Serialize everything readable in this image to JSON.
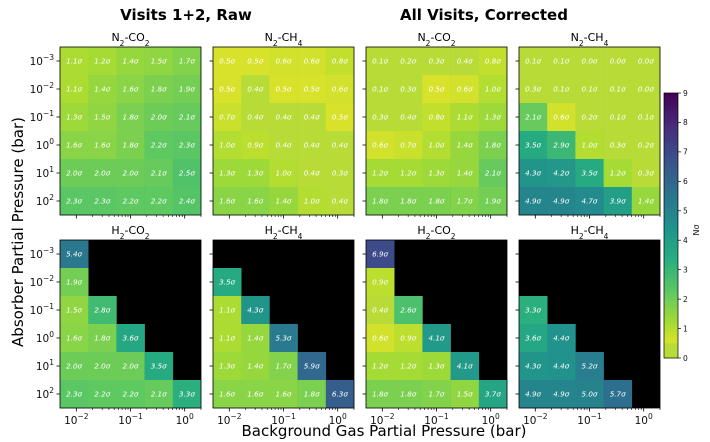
{
  "figure": {
    "group_titles": [
      "Visits 1+2, Raw",
      "All Visits, Corrected"
    ],
    "xlabel": "Background Gas Partial Pressure (bar)",
    "ylabel": "Absorber Partial Pressure (bar)",
    "colorbar_label": "Nσ",
    "colorbar_ticks": [
      "0",
      "1",
      "2",
      "3",
      "4",
      "5",
      "6",
      "7",
      "8",
      "9"
    ],
    "x_ticks": [
      {
        "base": "10",
        "exp": "−2"
      },
      {
        "base": "10",
        "exp": "−1"
      },
      {
        "base": "10",
        "exp": "0"
      }
    ],
    "y_ticks": [
      {
        "base": "10",
        "exp": "−3"
      },
      {
        "base": "10",
        "exp": "−2"
      },
      {
        "base": "10",
        "exp": "−1"
      },
      {
        "base": "10",
        "exp": "0"
      },
      {
        "base": "10",
        "exp": "1"
      },
      {
        "base": "10",
        "exp": "2"
      }
    ]
  },
  "chart_data": {
    "type": "heatmap",
    "colormap": "viridis_r",
    "vmin": 0,
    "vmax": 9,
    "unit": "σ",
    "masked_color": "#000000",
    "x_range": [
      0.005,
      2.0
    ],
    "y_order": [
      "1e-3",
      "1e-2",
      "1e-1",
      "1e0",
      "1e1",
      "1e2"
    ],
    "panels": [
      {
        "title": "N2-CO2",
        "title_parts": [
          {
            "t": "N"
          },
          {
            "t": "2",
            "sub": true
          },
          {
            "t": "-CO"
          },
          {
            "t": "2",
            "sub": true
          }
        ],
        "values": [
          [
            1.1,
            1.2,
            1.4,
            1.5,
            1.7
          ],
          [
            1.1,
            1.4,
            1.6,
            1.8,
            1.9
          ],
          [
            1.3,
            1.5,
            1.8,
            2.0,
            2.1
          ],
          [
            1.6,
            1.6,
            1.8,
            2.2,
            2.3
          ],
          [
            2.0,
            2.0,
            2.0,
            2.1,
            2.5
          ],
          [
            2.3,
            2.3,
            2.2,
            2.2,
            2.4
          ]
        ]
      },
      {
        "title": "N2-CH4",
        "title_parts": [
          {
            "t": "N"
          },
          {
            "t": "2",
            "sub": true
          },
          {
            "t": "-CH"
          },
          {
            "t": "4",
            "sub": true
          }
        ],
        "values": [
          [
            0.5,
            0.5,
            0.6,
            0.6,
            0.8
          ],
          [
            0.5,
            0.4,
            0.5,
            0.5,
            0.6
          ],
          [
            0.7,
            0.4,
            0.4,
            0.4,
            0.5
          ],
          [
            1.0,
            0.9,
            0.4,
            0.4,
            0.4
          ],
          [
            1.3,
            1.3,
            1.0,
            0.4,
            0.3
          ],
          [
            1.6,
            1.6,
            1.4,
            1.0,
            0.4
          ]
        ]
      },
      {
        "title": "N2-CO2",
        "title_parts": [
          {
            "t": "N"
          },
          {
            "t": "2",
            "sub": true
          },
          {
            "t": "-CO"
          },
          {
            "t": "2",
            "sub": true
          }
        ],
        "values": [
          [
            0.1,
            0.2,
            0.3,
            0.4,
            0.8
          ],
          [
            0.1,
            0.3,
            0.5,
            0.6,
            1.0
          ],
          [
            0.3,
            0.4,
            0.8,
            1.1,
            1.3
          ],
          [
            0.6,
            0.7,
            1.0,
            1.4,
            1.8
          ],
          [
            1.2,
            1.2,
            1.3,
            1.4,
            2.1
          ],
          [
            1.8,
            1.8,
            1.8,
            1.7,
            1.9
          ]
        ]
      },
      {
        "title": "N2-CH4",
        "title_parts": [
          {
            "t": "N"
          },
          {
            "t": "2",
            "sub": true
          },
          {
            "t": "-CH"
          },
          {
            "t": "4",
            "sub": true
          }
        ],
        "values": [
          [
            0.1,
            0.1,
            0.0,
            0.0,
            0.0
          ],
          [
            0.3,
            0.1,
            0.1,
            0.1,
            0.0
          ],
          [
            2.1,
            0.6,
            0.2,
            0.1,
            0.1
          ],
          [
            3.5,
            2.9,
            1.0,
            0.3,
            0.2
          ],
          [
            4.3,
            4.2,
            3.5,
            1.2,
            0.3
          ],
          [
            4.9,
            4.9,
            4.7,
            3.9,
            1.4
          ]
        ]
      },
      {
        "title": "H2-CO2",
        "title_parts": [
          {
            "t": "H"
          },
          {
            "t": "2",
            "sub": true
          },
          {
            "t": "-CO"
          },
          {
            "t": "2",
            "sub": true
          }
        ],
        "values": [
          [
            5.4,
            null,
            null,
            null,
            null
          ],
          [
            1.9,
            null,
            null,
            null,
            null
          ],
          [
            1.5,
            2.8,
            null,
            null,
            null
          ],
          [
            1.6,
            1.8,
            3.6,
            null,
            null
          ],
          [
            2.0,
            2.0,
            2.0,
            3.5,
            null
          ],
          [
            2.3,
            2.2,
            2.2,
            2.1,
            3.3
          ]
        ]
      },
      {
        "title": "H2-CH4",
        "title_parts": [
          {
            "t": "H"
          },
          {
            "t": "2",
            "sub": true
          },
          {
            "t": "-CH"
          },
          {
            "t": "4",
            "sub": true
          }
        ],
        "values": [
          [
            null,
            null,
            null,
            null,
            null
          ],
          [
            3.5,
            null,
            null,
            null,
            null
          ],
          [
            1.1,
            4.3,
            null,
            null,
            null
          ],
          [
            1.1,
            1.4,
            5.3,
            null,
            null
          ],
          [
            1.3,
            1.4,
            1.7,
            5.9,
            null
          ],
          [
            1.6,
            1.6,
            1.6,
            1.8,
            6.3
          ]
        ]
      },
      {
        "title": "H2-CO2",
        "title_parts": [
          {
            "t": "H"
          },
          {
            "t": "2",
            "sub": true
          },
          {
            "t": "-CO"
          },
          {
            "t": "2",
            "sub": true
          }
        ],
        "values": [
          [
            6.9,
            null,
            null,
            null,
            null
          ],
          [
            0.9,
            null,
            null,
            null,
            null
          ],
          [
            0.4,
            2.6,
            null,
            null,
            null
          ],
          [
            0.6,
            0.9,
            4.1,
            null,
            null
          ],
          [
            1.2,
            1.2,
            1.3,
            4.1,
            null
          ],
          [
            1.8,
            1.8,
            1.7,
            1.5,
            3.7
          ]
        ]
      },
      {
        "title": "H2-CH4",
        "title_parts": [
          {
            "t": "H"
          },
          {
            "t": "2",
            "sub": true
          },
          {
            "t": "-CH"
          },
          {
            "t": "4",
            "sub": true
          }
        ],
        "values": [
          [
            null,
            null,
            null,
            null,
            null
          ],
          [
            null,
            null,
            null,
            null,
            null
          ],
          [
            3.3,
            null,
            null,
            null,
            null
          ],
          [
            3.6,
            4.4,
            null,
            null,
            null
          ],
          [
            4.3,
            4.4,
            5.2,
            null,
            null
          ],
          [
            4.9,
            4.9,
            5.0,
            5.7,
            null
          ]
        ]
      }
    ]
  }
}
